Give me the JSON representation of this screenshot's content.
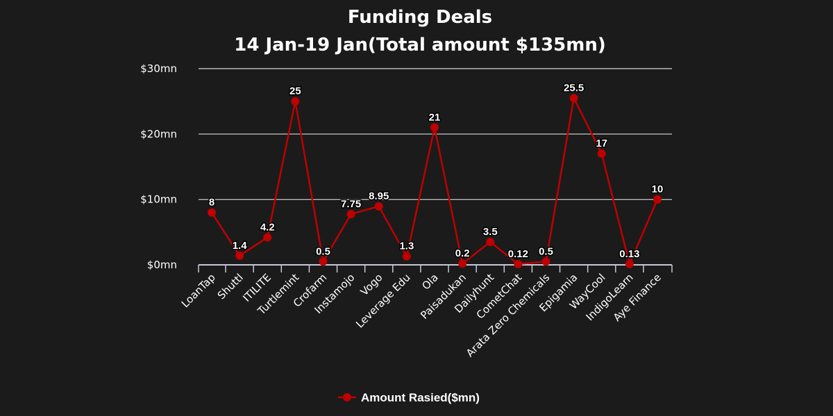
{
  "chart_data": {
    "type": "line",
    "title": "Funding Deals",
    "subtitle": "14 Jan-19 Jan(Total amount $135mn)",
    "xlabel": "",
    "ylabel": "",
    "ylim": [
      0,
      30
    ],
    "yticks": [
      0,
      10,
      20,
      30
    ],
    "ytick_labels": [
      "$0mn",
      "$10mn",
      "$20mn",
      "$30mn"
    ],
    "grid": true,
    "legend_position": "bottom",
    "categories": [
      "LoanTap",
      "Shuttl",
      "ITILITE",
      "Turtlemint",
      "Crofarm",
      "Instamojo",
      "Vogo",
      "Leverage Edu",
      "Ola",
      "Paisadukan",
      "Dailyhunt",
      "CometChat",
      "Arata Zero Chemicals",
      "Epigamia",
      "WayCool",
      "IndigoLearn",
      "Aye Finance"
    ],
    "series": [
      {
        "name": "Amount Rasied($mn)",
        "color": "#c00000",
        "values": [
          8,
          1.4,
          4.2,
          25,
          0.5,
          7.75,
          8.95,
          1.3,
          21,
          0.2,
          3.5,
          0.12,
          0.5,
          25.5,
          17,
          0.13,
          10
        ],
        "value_labels": [
          "8",
          "1.4",
          "4.2",
          "25",
          "0.5",
          "7.75",
          "8.95",
          "1.3",
          "21",
          "0.2",
          "3.5",
          "0.12",
          "0.5",
          "25.5",
          "17",
          "0.13",
          "10"
        ]
      }
    ]
  }
}
